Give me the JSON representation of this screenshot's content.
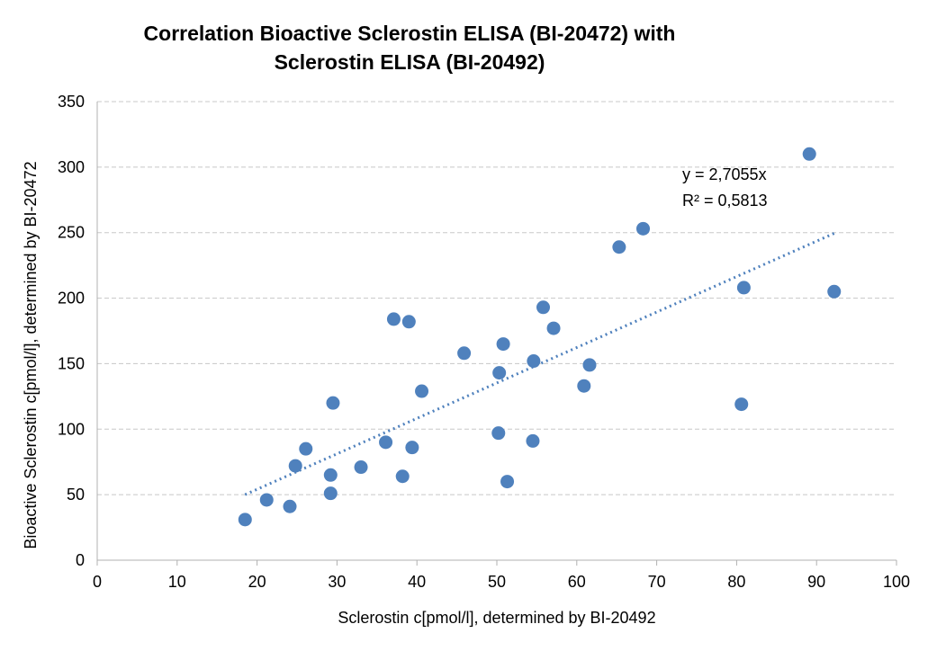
{
  "chart_data": {
    "type": "scatter",
    "title_lines": [
      "Correlation Bioactive Sclerostin ELISA (BI-20472) with",
      "Sclerostin ELISA (BI-20492)"
    ],
    "xlabel": "Sclerostin c[pmol/l], determined by BI-20492",
    "ylabel": "Bioactive Sclerostin  c[pmol/l], determined by BI-20472",
    "xlim": [
      0,
      100
    ],
    "ylim": [
      0,
      350
    ],
    "x_ticks": [
      0,
      10,
      20,
      30,
      40,
      50,
      60,
      70,
      80,
      90,
      100
    ],
    "y_ticks": [
      0,
      50,
      100,
      150,
      200,
      250,
      300,
      350
    ],
    "x_tick_labels": [
      "0",
      "10",
      "20",
      "30",
      "40",
      "50",
      "60",
      "70",
      "80",
      "90",
      "100"
    ],
    "y_tick_labels": [
      "0",
      "50",
      "100",
      "150",
      "200",
      "250",
      "300",
      "350"
    ],
    "grid": true,
    "series": [
      {
        "color": "#4f81bd",
        "points": [
          {
            "x": 18.5,
            "y": 31
          },
          {
            "x": 21.2,
            "y": 46
          },
          {
            "x": 24.1,
            "y": 41
          },
          {
            "x": 24.8,
            "y": 72
          },
          {
            "x": 26.1,
            "y": 85
          },
          {
            "x": 29.2,
            "y": 65
          },
          {
            "x": 29.2,
            "y": 51
          },
          {
            "x": 29.5,
            "y": 120
          },
          {
            "x": 33.0,
            "y": 71
          },
          {
            "x": 36.1,
            "y": 90
          },
          {
            "x": 37.1,
            "y": 184
          },
          {
            "x": 38.2,
            "y": 64
          },
          {
            "x": 39.0,
            "y": 182
          },
          {
            "x": 39.4,
            "y": 86
          },
          {
            "x": 40.6,
            "y": 129
          },
          {
            "x": 45.9,
            "y": 158
          },
          {
            "x": 50.2,
            "y": 97
          },
          {
            "x": 50.3,
            "y": 143
          },
          {
            "x": 50.8,
            "y": 165
          },
          {
            "x": 51.3,
            "y": 60
          },
          {
            "x": 54.5,
            "y": 91
          },
          {
            "x": 54.6,
            "y": 152
          },
          {
            "x": 55.8,
            "y": 193
          },
          {
            "x": 57.1,
            "y": 177
          },
          {
            "x": 60.9,
            "y": 133
          },
          {
            "x": 61.6,
            "y": 149
          },
          {
            "x": 65.3,
            "y": 239
          },
          {
            "x": 68.3,
            "y": 253
          },
          {
            "x": 80.6,
            "y": 119
          },
          {
            "x": 80.9,
            "y": 208
          },
          {
            "x": 89.1,
            "y": 310
          },
          {
            "x": 92.2,
            "y": 205
          }
        ]
      }
    ],
    "trendline": {
      "slope": 2.7055,
      "x_range": [
        18.5,
        92.2
      ],
      "equation": "y = 2,7055x",
      "r_squared": "R² = 0,5813"
    }
  }
}
